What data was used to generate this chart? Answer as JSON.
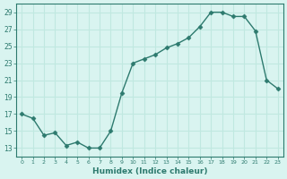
{
  "x": [
    0,
    1,
    2,
    3,
    4,
    5,
    6,
    7,
    8,
    9,
    10,
    11,
    12,
    13,
    14,
    15,
    16,
    17,
    18,
    19,
    20,
    21,
    22,
    23
  ],
  "y": [
    17.0,
    16.5,
    14.5,
    14.8,
    13.3,
    13.7,
    13.0,
    13.0,
    15.0,
    19.5,
    23.0,
    23.5,
    24.0,
    24.8,
    25.3,
    26.0,
    27.3,
    29.0,
    29.0,
    28.5,
    28.5,
    26.8,
    21.0,
    20.0
  ],
  "xlabel": "Humidex (Indice chaleur)",
  "ylabel": "",
  "line_color": "#2d7a6e",
  "marker_color": "#2d7a6e",
  "bg_color": "#d9f4f0",
  "grid_color": "#c0e8e0",
  "axes_color": "#2d7a6e",
  "tick_color": "#2d7a6e",
  "xlabel_color": "#2d7a6e",
  "ylim": [
    12,
    30
  ],
  "xlim": [
    -0.5,
    23.5
  ],
  "yticks": [
    13,
    15,
    17,
    19,
    21,
    23,
    25,
    27,
    29
  ],
  "xticks": [
    0,
    1,
    2,
    3,
    4,
    5,
    6,
    7,
    8,
    9,
    10,
    11,
    12,
    13,
    14,
    15,
    16,
    17,
    18,
    19,
    20,
    21,
    22,
    23
  ]
}
